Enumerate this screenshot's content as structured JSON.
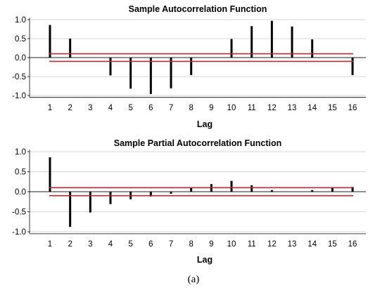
{
  "caption": "(a)",
  "chart_data": [
    {
      "type": "bar",
      "title": "Sample Autocorrelation Function",
      "xlabel": "Lag",
      "ylabel": "",
      "categories": [
        "1",
        "2",
        "3",
        "4",
        "5",
        "6",
        "7",
        "8",
        "9",
        "10",
        "11",
        "12",
        "13",
        "14",
        "15",
        "16"
      ],
      "values": [
        0.86,
        0.5,
        0.0,
        -0.47,
        -0.82,
        -0.96,
        -0.81,
        -0.46,
        0.0,
        0.49,
        0.83,
        0.97,
        0.82,
        0.48,
        0.0,
        -0.46
      ],
      "ylim": [
        -1.05,
        1.05
      ],
      "yticks": [
        "1.0",
        "0.5",
        "0.0",
        "-0.5",
        "-1.0"
      ],
      "ytick_values": [
        1.0,
        0.5,
        0.0,
        -0.5,
        -1.0
      ],
      "confidence_limits": [
        0.1,
        -0.1
      ],
      "bar_color": "#000000",
      "limit_color": "#c0272d",
      "grid": true
    },
    {
      "type": "bar",
      "title": "Sample  Partial Autocorrelation Function",
      "xlabel": "Lag",
      "ylabel": "",
      "categories": [
        "1",
        "2",
        "3",
        "4",
        "5",
        "6",
        "7",
        "8",
        "9",
        "10",
        "11",
        "12",
        "13",
        "14",
        "15",
        "16"
      ],
      "values": [
        0.86,
        -0.88,
        -0.52,
        -0.31,
        -0.19,
        -0.12,
        -0.05,
        0.09,
        0.19,
        0.27,
        0.16,
        0.04,
        0.0,
        0.04,
        0.1,
        0.12
      ],
      "ylim": [
        -1.05,
        1.05
      ],
      "yticks": [
        "1.0",
        "0.5",
        "0.0",
        "-0.5",
        "-1.0"
      ],
      "ytick_values": [
        1.0,
        0.5,
        0.0,
        -0.5,
        -1.0
      ],
      "confidence_limits": [
        0.1,
        -0.1
      ],
      "bar_color": "#000000",
      "limit_color": "#c0272d",
      "grid": true
    }
  ]
}
